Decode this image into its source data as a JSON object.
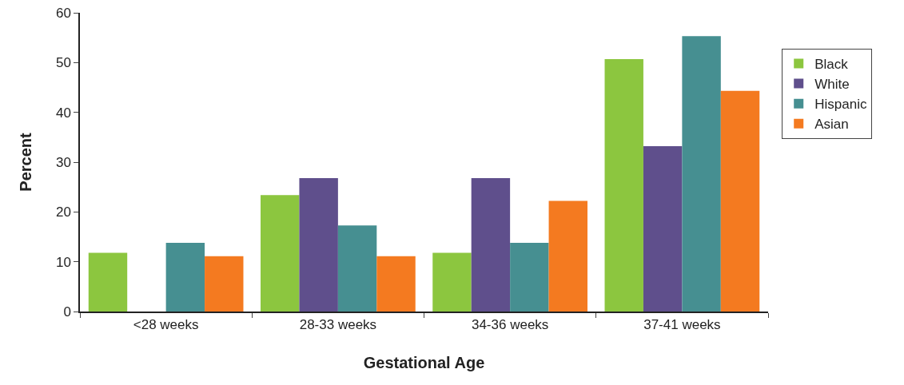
{
  "chart_data": {
    "type": "bar",
    "xlabel": "Gestational Age",
    "ylabel": "Percent",
    "categories": [
      "<28 weeks",
      "28-33 weeks",
      "34-36 weeks",
      "37-41 weeks"
    ],
    "series": [
      {
        "name": "Black",
        "color": "#8cc63f",
        "values": [
          11.8,
          23.4,
          11.8,
          50.7
        ]
      },
      {
        "name": "White",
        "color": "#5f4f8c",
        "values": [
          null,
          26.8,
          26.8,
          33.2
        ]
      },
      {
        "name": "Hispanic",
        "color": "#468f91",
        "values": [
          13.8,
          17.3,
          13.8,
          55.3
        ]
      },
      {
        "name": "Asian",
        "color": "#f47a20",
        "values": [
          11.1,
          11.1,
          22.2,
          44.3
        ]
      }
    ],
    "ylim": [
      0,
      60
    ],
    "yticks": [
      0,
      10,
      20,
      30,
      40,
      50,
      60
    ],
    "grid": false,
    "legend": "right"
  }
}
